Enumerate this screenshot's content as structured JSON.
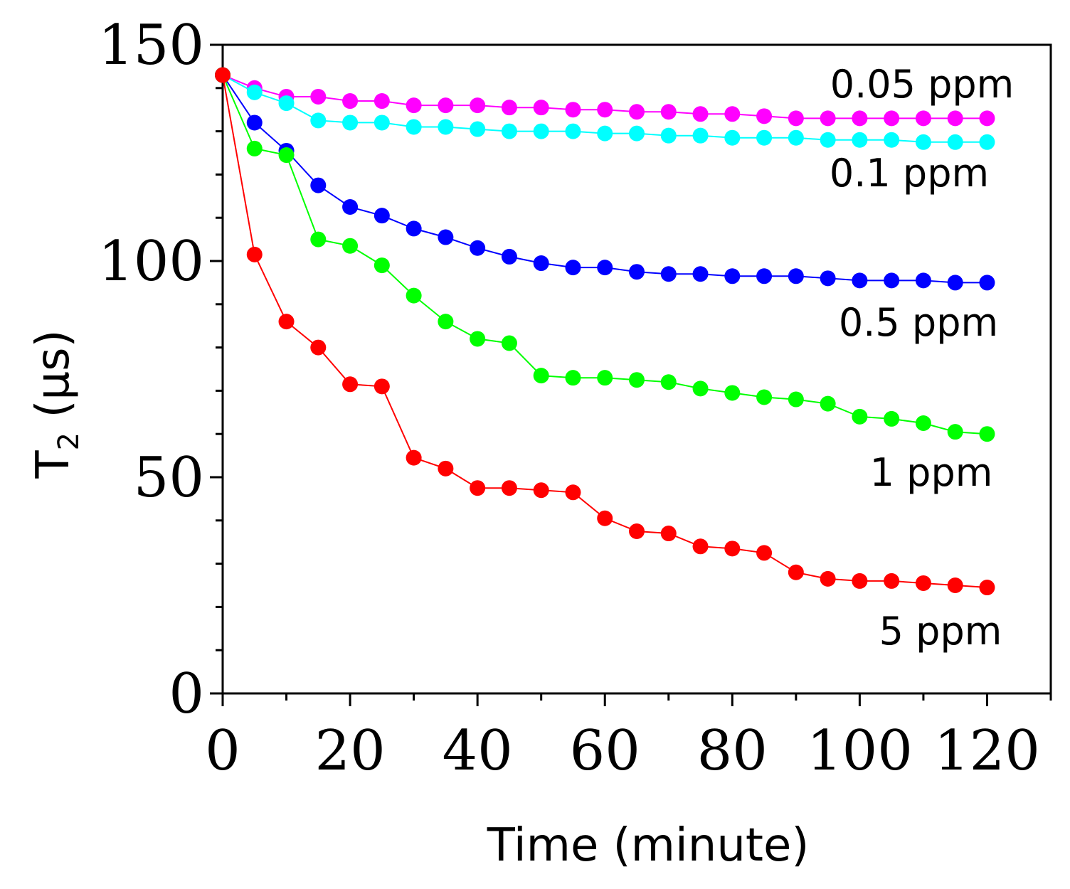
{
  "chart_data": {
    "type": "line",
    "title": "",
    "xlabel": "Time (minute)",
    "ylabel": {
      "main": "T",
      "sub": "2",
      "unit": " (µs)"
    },
    "xlim": [
      0,
      130
    ],
    "ylim": [
      0,
      150
    ],
    "xticks": [
      0,
      20,
      40,
      60,
      80,
      100,
      120
    ],
    "yticks": [
      0,
      50,
      100,
      150
    ],
    "grid": false,
    "x": [
      0,
      5,
      10,
      15,
      20,
      25,
      30,
      35,
      40,
      45,
      50,
      55,
      60,
      65,
      70,
      75,
      80,
      85,
      90,
      95,
      100,
      105,
      110,
      115,
      120
    ],
    "series": [
      {
        "name": "0.05 ppm",
        "color": "#ff00ff",
        "values": [
          143,
          140,
          138,
          138,
          137,
          137,
          136,
          136,
          136,
          135.5,
          135.5,
          135,
          135,
          134.5,
          134.5,
          134,
          134,
          133.5,
          133,
          133,
          133,
          133,
          133,
          133,
          133
        ]
      },
      {
        "name": "0.1 ppm",
        "color": "#00ffff",
        "values": [
          143,
          139,
          136.5,
          132.5,
          132,
          132,
          131,
          131,
          130.5,
          130,
          130,
          130,
          129.5,
          129.5,
          129,
          129,
          128.5,
          128.5,
          128.5,
          128,
          128,
          128,
          127.5,
          127.5,
          127.5
        ]
      },
      {
        "name": "0.5 ppm",
        "color": "#0000ff",
        "values": [
          143,
          132,
          125.5,
          117.5,
          112.5,
          110.5,
          107.5,
          105.5,
          103,
          101,
          99.5,
          98.5,
          98.5,
          97.5,
          97,
          97,
          96.5,
          96.5,
          96.5,
          96,
          95.5,
          95.5,
          95.5,
          95,
          95
        ]
      },
      {
        "name": "1 ppm",
        "color": "#00ff00",
        "values": [
          143,
          126,
          124.5,
          105,
          103.5,
          99,
          92,
          86,
          82,
          81,
          73.5,
          73,
          73,
          72.5,
          72,
          70.5,
          69.5,
          68.5,
          68,
          67,
          64,
          63.5,
          62.5,
          60.5,
          60
        ]
      },
      {
        "name": "5 ppm",
        "color": "#ff0000",
        "values": [
          143,
          101.5,
          86,
          80,
          71.5,
          71,
          54.5,
          52,
          47.5,
          47.5,
          47,
          46.5,
          40.5,
          37.5,
          37,
          34,
          33.5,
          32.5,
          28,
          26.5,
          26,
          26,
          25.5,
          25,
          24.5
        ]
      }
    ]
  }
}
